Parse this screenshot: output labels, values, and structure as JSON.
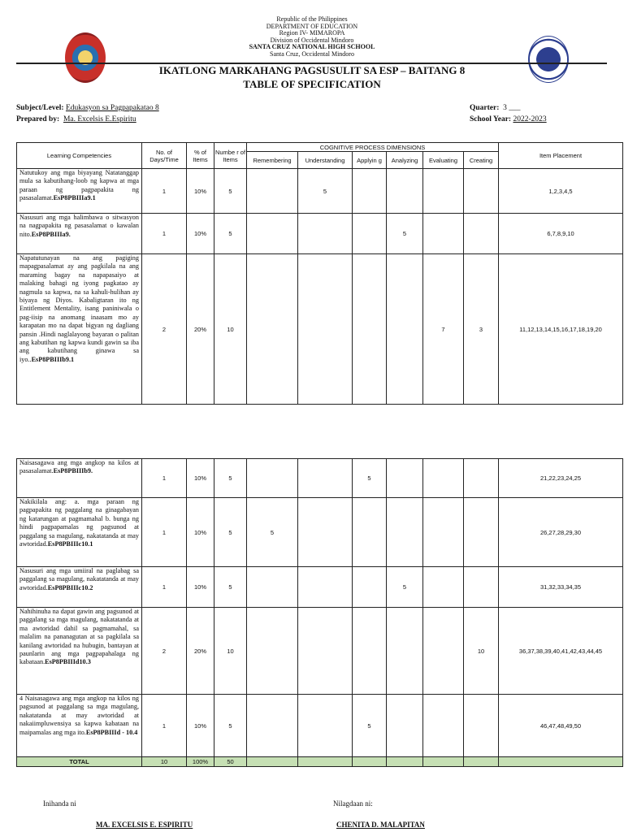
{
  "header": {
    "lines": [
      "Republic of the Philippines",
      "DEPARTMENT OF EDUCATION",
      "Region IV- MIMAROPA",
      "Division of Occidental Mindoro",
      "SANTA CRUZ NATIONAL HIGH SCHOOL",
      "Santa Cruz, Occidental Mindoro"
    ],
    "title": "IKATLONG MARKAHANG PAGSUSULIT SA ESP – BAITANG 8",
    "subtitle": "TABLE OF SPECIFICATION"
  },
  "meta": {
    "subject_label": "Subject/Level:",
    "subject_value": "Edukasyon sa Pagpapakatao 8",
    "prepared_label": "Prepared by:",
    "prepared_value": "Ma. Excelsis E.Espiritu",
    "quarter_label": "Quarter:",
    "quarter_value": "3 ___",
    "sy_label": "School Year:",
    "sy_value": "2022-2023"
  },
  "table": {
    "headers": {
      "competencies": "Learning Competencies",
      "days": "No. of Days/Time",
      "percent": "% of Items",
      "items": "Numbe r of Items",
      "dimensions": "COGNITIVE PROCESS DIMENSIONS",
      "remembering": "Remembering",
      "understanding": "Understanding",
      "applying": "Applyin g",
      "analyzing": "Analyzing",
      "evaluating": "Evaluating",
      "creating": "Creating",
      "placement": "Item Placement"
    },
    "rows": [
      {
        "text": "Natutukoy ang mga biyayang Natatanggap mula sa kabutihang-loob ng kapwa at mga paraan ng pagpapakita ng pasasalamat.",
        "code": "EsP8PBIIIa9.1",
        "days": "1",
        "percent": "10%",
        "items": "5",
        "remembering": "",
        "understanding": "5",
        "applying": "",
        "analyzing": "",
        "evaluating": "",
        "creating": "",
        "placement": "1,2,3,4,5"
      },
      {
        "text": "Nasusuri ang mga halimbawa o sitwasyon na nagpapakita ng pasasalamat o kawalan nito.",
        "code": "EsP8PBIIIa9.",
        "days": "1",
        "percent": "10%",
        "items": "5",
        "remembering": "",
        "understanding": "",
        "applying": "",
        "analyzing": "5",
        "evaluating": "",
        "creating": "",
        "placement": "6,7,8,9,10"
      },
      {
        "text": "Napatutunayan na ang pagiging mapagpasalamat ay ang pagkilala na ang maraming bagay na napapasaiyo at malaking bahagi ng iyong pagkatao ay nagmula sa kapwa, na sa kahuli-hulihan ay biyaya ng Diyos. Kabaligtaran ito ng Entitlement Mentality, isang paniniwala o pag-iisip na anomang inaasam mo ay karapatan mo na dapat bigyan ng dagliang pansin .Hindi naglalayong bayaran o palitan ang kabutihan ng kapwa kundi gawin sa iba ang kabutihang ginawa sa iyo..",
        "code": "EsP8PBIIIb9.1",
        "days": "2",
        "percent": "20%",
        "items": "10",
        "remembering": "",
        "understanding": "",
        "applying": "",
        "analyzing": "",
        "evaluating": "7",
        "creating": "3",
        "placement": "11,12,13,14,15,16,17,18,19,20"
      },
      {
        "text": "Naisasagawa ang mga angkop na kilos at pasasalamat.",
        "code": "EsP8PBIIIb9.",
        "days": "1",
        "percent": "10%",
        "items": "5",
        "remembering": "",
        "understanding": "",
        "applying": "5",
        "analyzing": "",
        "evaluating": "",
        "creating": "",
        "placement": "21,22,23,24,25"
      },
      {
        "text": "Nakikilala ang: a. mga paraan ng pagpapakita ng paggalang na ginagabayan ng katarungan at pagmamahal b. bunga ng hindi pagpapamalas ng pagsunod at paggalang sa magulang, nakatatanda at may awtoridad.",
        "code": "EsP8PBIIIc10.1",
        "days": "1",
        "percent": "10%",
        "items": "5",
        "remembering": "5",
        "understanding": "",
        "applying": "",
        "analyzing": "",
        "evaluating": "",
        "creating": "",
        "placement": "26,27,28,29,30"
      },
      {
        "text": "Nasusuri ang mga umiiral na paglabag sa paggalang sa magulang, nakatatanda at may awtoridad.",
        "code": "EsP8PBIIIc10.2",
        "days": "1",
        "percent": "10%",
        "items": "5",
        "remembering": "",
        "understanding": "",
        "applying": "",
        "analyzing": "5",
        "evaluating": "",
        "creating": "",
        "placement": "31,32,33,34,35"
      },
      {
        "text": "Nahihinuha na dapat gawin ang pagsunod at paggalang sa mga magulang, nakatatanda at ma awtoridad dahil sa pagmamahal, sa malalim na pananagutan at sa pagkilala sa kanilang awtoridad na hubugin, bantayan at paunlarin ang mga pagpapahalaga ng kabataan.",
        "code": "EsP8PBIIId10.3",
        "days": "2",
        "percent": "20%",
        "items": "10",
        "remembering": "",
        "understanding": "",
        "applying": "",
        "analyzing": "",
        "evaluating": "",
        "creating": "10",
        "placement": "36,37,38,39,40,41,42,43,44,45"
      },
      {
        "text": "4 Naisasagawa ang mga angkop na kilos ng pagsunod at paggalang sa mga magulang, nakatatanda at may awtoridad at nakaiimpluwensiya sa kapwa kabataan na maipamalas ang mga ito.",
        "code": "EsP8PBIIId - 10.4",
        "days": "1",
        "percent": "10%",
        "items": "5",
        "remembering": "",
        "understanding": "",
        "applying": "5",
        "analyzing": "",
        "evaluating": "",
        "creating": "",
        "placement": "46,47,48,49,50"
      }
    ],
    "total": {
      "label": "TOTAL",
      "days": "10",
      "percent": "100%",
      "items": "50"
    }
  },
  "signatures": {
    "prepared_label": "Inihanda ni",
    "prepared_name": "MA. EXCELSIS E. ESPIRITU",
    "signed_label": "Nilagdaan ni:",
    "signed_name": "CHENITA D. MALAPITAN"
  },
  "colors": {
    "total_row": "#c6e0b4"
  }
}
